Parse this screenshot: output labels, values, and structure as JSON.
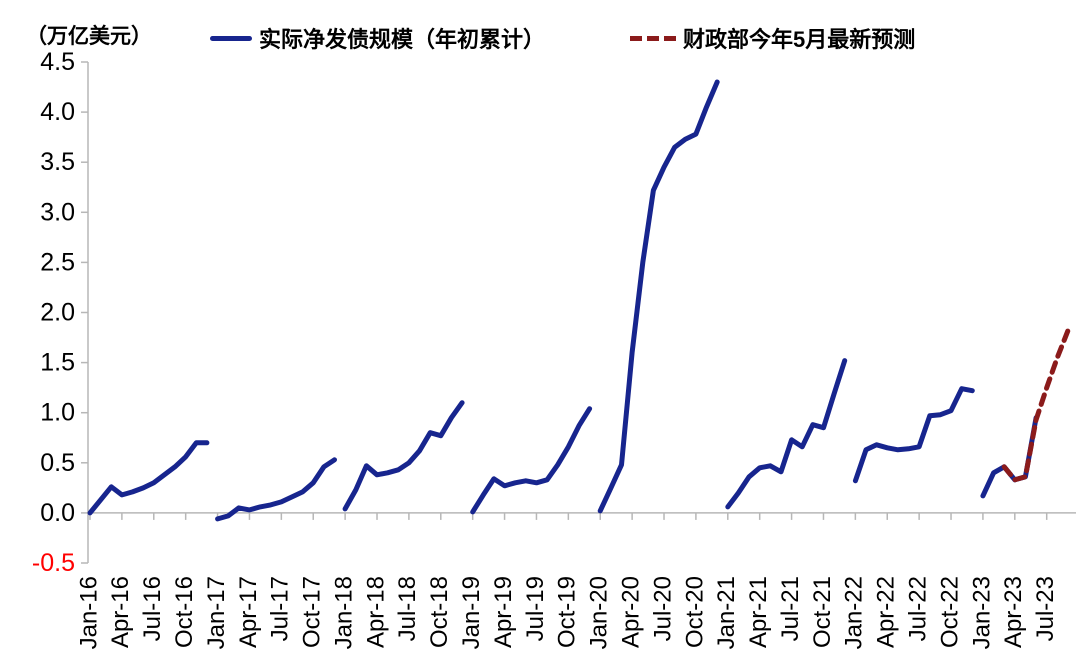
{
  "unit_label": "（万亿美元）",
  "legend": {
    "items": [
      {
        "label": "实际净发债规模（年初累计）",
        "color": "#17258e",
        "style": "solid"
      },
      {
        "label": "财政部今年5月最新预测",
        "color": "#8b1b1b",
        "style": "dashed"
      }
    ]
  },
  "chart_data": {
    "type": "line",
    "title": "",
    "unit_label": "（万亿美元）",
    "ylim": [
      -0.5,
      4.5
    ],
    "y_tick_labels": [
      "4.5",
      "4.0",
      "3.5",
      "3.0",
      "2.5",
      "2.0",
      "1.5",
      "1.0",
      "0.5",
      "0.0",
      "-0.5"
    ],
    "y_tick_color": "#000000",
    "y_tick_negative_color": "#ff0000",
    "x_tick_labels": [
      "Jan-16",
      "Apr-16",
      "Jul-16",
      "Oct-16",
      "Jan-17",
      "Apr-17",
      "Jul-17",
      "Oct-17",
      "Jan-18",
      "Apr-18",
      "Jul-18",
      "Oct-18",
      "Jan-19",
      "Apr-19",
      "Jul-19",
      "Oct-19",
      "Jan-20",
      "Apr-20",
      "Jul-20",
      "Oct-20",
      "Jan-21",
      "Apr-21",
      "Jul-21",
      "Oct-21",
      "Jan-22",
      "Apr-22",
      "Jul-22",
      "Oct-22",
      "Jan-23",
      "Apr-23",
      "Jul-23"
    ],
    "x_tick_step_months": 3,
    "axis_color": "#b7b7b7",
    "grid": false,
    "legend_position": "top",
    "series": [
      {
        "name": "实际净发债规模（年初累计）",
        "color": "#17258e",
        "style": "solid",
        "segments": [
          {
            "start_label": "Jan-16",
            "start_month_index": 0,
            "values": [
              0.0,
              0.13,
              0.26,
              0.18,
              0.21,
              0.25,
              0.3,
              0.38,
              0.46,
              0.56,
              0.7,
              0.7
            ]
          },
          {
            "start_label": "Jan-17",
            "start_month_index": 12,
            "values": [
              -0.06,
              -0.03,
              0.05,
              0.03,
              0.06,
              0.08,
              0.11,
              0.16,
              0.21,
              0.3,
              0.46,
              0.53
            ]
          },
          {
            "start_label": "Jan-18",
            "start_month_index": 24,
            "values": [
              0.04,
              0.23,
              0.47,
              0.38,
              0.4,
              0.43,
              0.5,
              0.62,
              0.8,
              0.77,
              0.95,
              1.1
            ]
          },
          {
            "start_label": "Jan-19",
            "start_month_index": 36,
            "values": [
              0.01,
              0.18,
              0.34,
              0.27,
              0.3,
              0.32,
              0.3,
              0.33,
              0.48,
              0.66,
              0.87,
              1.04
            ]
          },
          {
            "start_label": "Jan-20",
            "start_month_index": 48,
            "values": [
              0.02,
              0.25,
              0.48,
              1.6,
              2.5,
              3.22,
              3.45,
              3.65,
              3.73,
              3.78,
              4.05,
              4.3
            ]
          },
          {
            "start_label": "Jan-21",
            "start_month_index": 60,
            "values": [
              0.06,
              0.2,
              0.36,
              0.45,
              0.47,
              0.41,
              0.73,
              0.66,
              0.88,
              0.85,
              1.19,
              1.52
            ]
          },
          {
            "start_label": "Jan-22",
            "start_month_index": 72,
            "values": [
              0.32,
              0.63,
              0.68,
              0.65,
              0.63,
              0.64,
              0.66,
              0.97,
              0.98,
              1.02,
              1.24,
              1.22
            ]
          },
          {
            "start_label": "Jan-23",
            "start_month_index": 84,
            "values": [
              0.17,
              0.4,
              0.46,
              0.33,
              0.36,
              0.95
            ]
          }
        ]
      },
      {
        "name": "财政部今年5月最新预测",
        "color": "#8b1b1b",
        "style": "dashed",
        "segments": [
          {
            "start_label": "Mar-23",
            "start_month_index": 86,
            "values": [
              0.46,
              0.33,
              0.36,
              0.93,
              1.25,
              1.55,
              1.82
            ]
          }
        ]
      }
    ]
  }
}
